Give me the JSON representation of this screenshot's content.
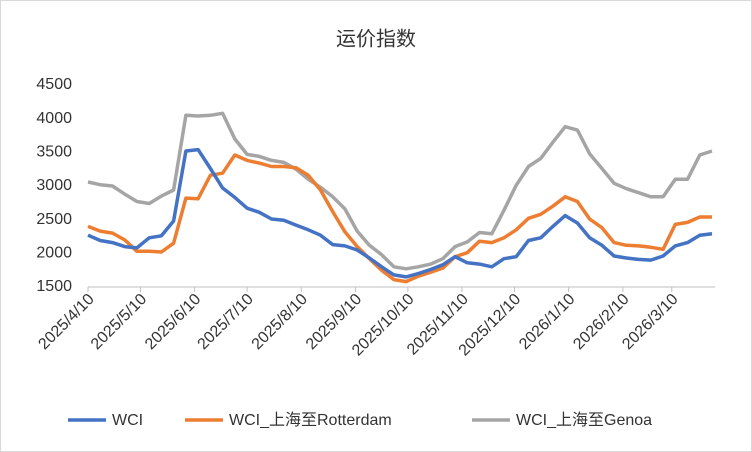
{
  "chart_data": {
    "type": "line",
    "title": "运价指数",
    "x": [
      "2025/4/10",
      "2025/4/17",
      "2025/4/24",
      "2025/5/1",
      "2025/5/8",
      "2025/5/15",
      "2025/5/22",
      "2025/5/29",
      "2025/6/5",
      "2025/6/12",
      "2025/6/19",
      "2025/6/26",
      "2025/7/3",
      "2025/7/10",
      "2025/7/17",
      "2025/7/24",
      "2025/7/31",
      "2025/8/7",
      "2025/8/14",
      "2025/8/21",
      "2025/8/28",
      "2025/9/4",
      "2025/9/11",
      "2025/9/18",
      "2025/9/25",
      "2025/10/2",
      "2025/10/9",
      "2025/10/16",
      "2025/10/23",
      "2025/10/30",
      "2025/11/6",
      "2025/11/13",
      "2025/11/20",
      "2025/11/27",
      "2025/12/4",
      "2025/12/11",
      "2025/12/18",
      "2025/12/25",
      "2026/1/1",
      "2026/1/8",
      "2026/1/15",
      "2026/1/22",
      "2026/1/29",
      "2026/2/5",
      "2026/2/12",
      "2026/2/19",
      "2026/2/26",
      "2026/3/5",
      "2026/3/12",
      "2026/3/19",
      "2026/3/26",
      "2026/4/2"
    ],
    "series": [
      {
        "name": "WCI",
        "color": "#4472c4",
        "values": [
          2270,
          2190,
          2160,
          2100,
          2080,
          2230,
          2260,
          2480,
          3520,
          3540,
          3260,
          2970,
          2830,
          2670,
          2610,
          2510,
          2490,
          2420,
          2350,
          2270,
          2130,
          2110,
          2050,
          1930,
          1800,
          1680,
          1650,
          1700,
          1760,
          1830,
          1950,
          1860,
          1840,
          1800,
          1920,
          1950,
          2190,
          2230,
          2400,
          2560,
          2450,
          2230,
          2120,
          1960,
          1930,
          1910,
          1900,
          1960,
          2110,
          2160,
          2270,
          2290
        ]
      },
      {
        "name": "WCI_上海至Rotterdam",
        "color": "#ed7d31",
        "values": [
          2400,
          2330,
          2300,
          2200,
          2030,
          2030,
          2020,
          2150,
          2820,
          2810,
          3160,
          3190,
          3460,
          3380,
          3340,
          3290,
          3290,
          3270,
          3160,
          2940,
          2620,
          2320,
          2100,
          1920,
          1750,
          1610,
          1580,
          1660,
          1720,
          1780,
          1950,
          2010,
          2180,
          2160,
          2230,
          2350,
          2520,
          2580,
          2700,
          2840,
          2770,
          2510,
          2380,
          2160,
          2120,
          2110,
          2090,
          2060,
          2430,
          2460,
          2540,
          2540
        ]
      },
      {
        "name": "WCI_上海至Genoa",
        "color": "#a5a5a5",
        "values": [
          3060,
          3020,
          3000,
          2880,
          2770,
          2740,
          2850,
          2940,
          4050,
          4040,
          4050,
          4080,
          3700,
          3470,
          3440,
          3380,
          3350,
          3250,
          3100,
          2980,
          2840,
          2660,
          2330,
          2120,
          1980,
          1800,
          1770,
          1800,
          1840,
          1920,
          2100,
          2170,
          2310,
          2290,
          2640,
          3010,
          3290,
          3410,
          3650,
          3880,
          3830,
          3480,
          3260,
          3040,
          2960,
          2900,
          2840,
          2840,
          3100,
          3100,
          3460,
          3520
        ]
      }
    ],
    "xlim": [
      "2025/4/10",
      "2026/4/2"
    ],
    "xticks": [
      "2025/4/10",
      "2025/5/10",
      "2025/6/10",
      "2025/7/10",
      "2025/8/10",
      "2025/9/10",
      "2025/10/10",
      "2025/11/10",
      "2025/12/10",
      "2026/1/10",
      "2026/2/10",
      "2026/3/10"
    ],
    "ylim": [
      1500,
      4500
    ],
    "yticks": [
      1500,
      2000,
      2500,
      3000,
      3500,
      4000,
      4500
    ],
    "grid": false,
    "legend": "bottom"
  }
}
